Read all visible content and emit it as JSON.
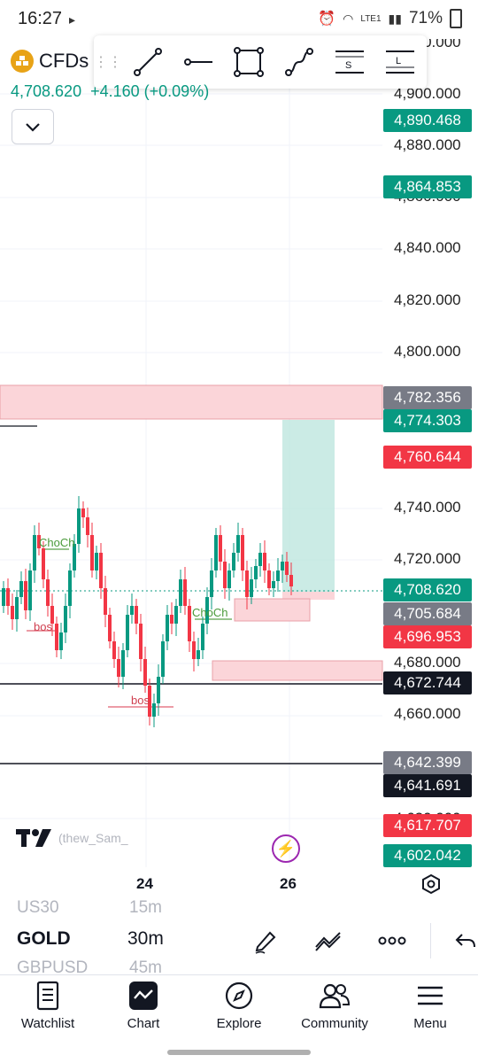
{
  "status_bar": {
    "time": "16:27",
    "network": "LTE1",
    "battery": "71%"
  },
  "symbol": {
    "name": "CFDs",
    "price": "4,708.620",
    "change": "+4.160 (+0.09%)"
  },
  "price_axis": {
    "labels": [
      "4,920.000",
      "4,900.000",
      "4,880.000",
      "4,860.000",
      "4,840.000",
      "4,820.000",
      "4,800.000",
      "4,740.000",
      "4,720.000",
      "4,680.000",
      "4,660.000",
      "4,620.000"
    ]
  },
  "price_badges": [
    {
      "value": "4,890.468",
      "color": "#089981"
    },
    {
      "value": "4,864.853",
      "color": "#089981"
    },
    {
      "value": "4,782.356",
      "color": "#787b86"
    },
    {
      "value": "4,774.303",
      "color": "#089981"
    },
    {
      "value": "4,760.644",
      "color": "#f23645"
    },
    {
      "value": "4,708.620",
      "color": "#089981"
    },
    {
      "value": "4,705.684",
      "color": "#787b86"
    },
    {
      "value": "4,696.953",
      "color": "#f23645"
    },
    {
      "value": "4,672.744",
      "color": "#131722"
    },
    {
      "value": "4,642.399",
      "color": "#787b86"
    },
    {
      "value": "4,641.691",
      "color": "#131722"
    },
    {
      "value": "4,617.707",
      "color": "#f23645"
    },
    {
      "value": "4,602.042",
      "color": "#089981"
    }
  ],
  "annotations": {
    "choch_1": "ChoCh",
    "choch_2": "ChoCh",
    "bos_1": "bos",
    "bos_2": "bos"
  },
  "watermark": {
    "author": "(thew_Sam_"
  },
  "time_axis": {
    "label_1": "24",
    "label_2": "26"
  },
  "instrument_bar": {
    "prev_symbol": "US30",
    "prev_interval": "15m",
    "symbol": "GOLD",
    "interval": "30m",
    "next_symbol": "GBPUSD",
    "next_interval": "45m"
  },
  "nav": {
    "watchlist": "Watchlist",
    "chart": "Chart",
    "explore": "Explore",
    "community": "Community",
    "menu": "Menu"
  },
  "colors": {
    "up": "#089981",
    "down": "#f23645",
    "accent": "#9c27b0"
  }
}
